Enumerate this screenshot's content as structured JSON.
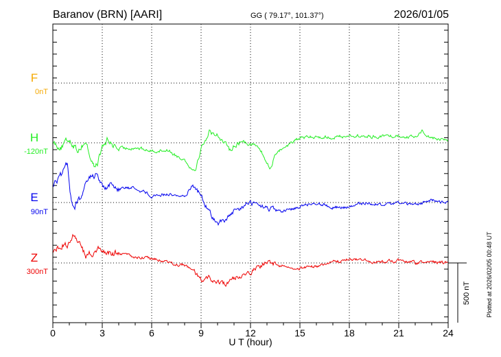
{
  "header": {
    "station": "Baranov (BRN)  [AARI]",
    "coords": "GG ( 79.17°, 101.37°)",
    "date": "2026/01/05"
  },
  "footer": {
    "plotted": "Plotted at 2026/02/05 00:48 UT"
  },
  "scale_bar": {
    "label": "500 nT",
    "value_nT": 500
  },
  "chart_data": {
    "type": "line",
    "title": "Baranov (BRN)  [AARI]",
    "xlabel": "U T (hour)",
    "ylabel": "",
    "xlim": [
      0,
      24
    ],
    "x_ticks": [
      "0",
      "3",
      "6",
      "9",
      "12",
      "15",
      "18",
      "21",
      "24"
    ],
    "grid": true,
    "series": [
      {
        "name": "F",
        "baseline_label": "0nT",
        "color": "#f5a800",
        "x": [],
        "values": []
      },
      {
        "name": "H",
        "baseline_label": "-120nT",
        "color": "#22ee22",
        "x": [
          0,
          0.5,
          1,
          1.5,
          2,
          2.3,
          2.5,
          2.7,
          3,
          3.3,
          3.5,
          4,
          5,
          6,
          7,
          7.5,
          8,
          8.5,
          8.7,
          9,
          9.3,
          9.5,
          10,
          10.3,
          10.7,
          11,
          11.5,
          12,
          12.5,
          13,
          13.2,
          13.5,
          14,
          14.5,
          15,
          16,
          17,
          18,
          19,
          20,
          21,
          22,
          22.4,
          23,
          24
        ],
        "values": [
          10,
          -40,
          30,
          -60,
          10,
          -130,
          -200,
          -170,
          -40,
          20,
          0,
          -50,
          -40,
          -70,
          -60,
          -110,
          -140,
          -230,
          -200,
          -50,
          40,
          90,
          70,
          20,
          -60,
          -20,
          10,
          0,
          -40,
          -170,
          -220,
          -90,
          -40,
          0,
          40,
          50,
          45,
          60,
          50,
          55,
          60,
          45,
          100,
          40,
          20
        ]
      },
      {
        "name": "E",
        "baseline_label": "90nT",
        "color": "#0000ee",
        "x": [
          0,
          0.5,
          0.9,
          1.1,
          1.3,
          1.8,
          2.2,
          2.7,
          3,
          3.5,
          4,
          5,
          6,
          7,
          8,
          8.5,
          9,
          9.5,
          10,
          10.5,
          11,
          12,
          13,
          14,
          15,
          16,
          17,
          18,
          19,
          20,
          21,
          22,
          23,
          24
        ],
        "values": [
          150,
          220,
          320,
          40,
          -40,
          60,
          210,
          240,
          130,
          150,
          120,
          120,
          60,
          70,
          50,
          150,
          60,
          -80,
          -180,
          -140,
          -80,
          0,
          -50,
          -80,
          -30,
          0,
          -40,
          -40,
          0,
          -20,
          0,
          -20,
          20,
          0
        ]
      },
      {
        "name": "Z",
        "baseline_label": "300nT",
        "color": "#ee0000",
        "x": [
          0,
          0.5,
          1,
          1.3,
          1.7,
          2,
          2.5,
          3,
          3.5,
          4,
          5,
          6,
          7,
          8,
          8.5,
          9,
          9.5,
          10,
          10.5,
          11,
          11.5,
          12,
          12.5,
          13,
          14,
          15,
          16,
          17,
          18,
          19,
          20,
          21,
          22,
          23,
          24
        ],
        "values": [
          80,
          150,
          160,
          250,
          130,
          50,
          90,
          120,
          80,
          80,
          50,
          40,
          0,
          -20,
          -60,
          -150,
          -120,
          -160,
          -180,
          -130,
          -90,
          -70,
          -30,
          0,
          -20,
          -40,
          -30,
          10,
          30,
          20,
          10,
          20,
          0,
          10,
          0
        ]
      }
    ]
  }
}
